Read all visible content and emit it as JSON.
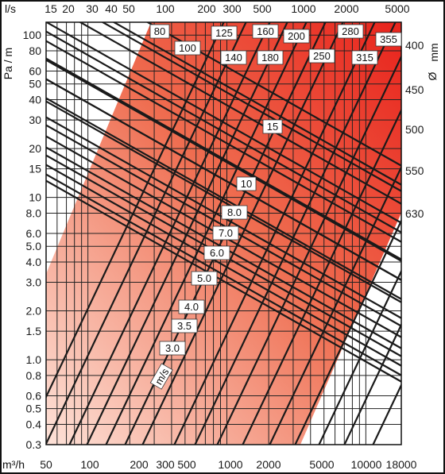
{
  "chart_data": {
    "type": "line",
    "title": "",
    "axes": {
      "bottom": {
        "label": "m³/h",
        "scale": "log",
        "range": [
          50,
          18000
        ],
        "tick_labels": [
          "50",
          "100",
          "200",
          "300",
          "500",
          "1000",
          "2000",
          "5000",
          "10000",
          "18000"
        ],
        "tick_values": [
          50,
          100,
          200,
          300,
          500,
          1000,
          2000,
          5000,
          10000,
          18000
        ]
      },
      "top": {
        "label": "l/s",
        "scale": "log",
        "tick_labels": [
          "15",
          "20",
          "30",
          "40",
          "50",
          "100",
          "200",
          "300",
          "500",
          "1000",
          "2000",
          "5000"
        ],
        "tick_values": [
          15,
          20,
          30,
          40,
          50,
          100,
          200,
          300,
          500,
          1000,
          2000,
          5000
        ]
      },
      "left": {
        "label": "Pa / m",
        "scale": "log",
        "range": [
          0.3,
          120
        ],
        "tick_labels": [
          "100",
          "80",
          "60",
          "50",
          "40",
          "30",
          "20",
          "15",
          "10",
          "8.0",
          "6.0",
          "5.0",
          "4.0",
          "3.0",
          "2.0",
          "1.5",
          "1.0",
          "0.8",
          "0.6",
          "0.5",
          "0.4",
          "0.3"
        ],
        "tick_values": [
          100,
          80,
          60,
          50,
          40,
          30,
          20,
          15,
          10,
          8,
          6,
          5,
          4,
          3,
          2,
          1.5,
          1,
          0.8,
          0.6,
          0.5,
          0.4,
          0.3
        ]
      },
      "right": {
        "label": "Ø",
        "unit": "mm",
        "tick_labels": [
          "400",
          "450",
          "500",
          "550",
          "630"
        ]
      }
    },
    "grid": true,
    "series_groups": [
      {
        "name": "diameter",
        "unit": "mm",
        "labels": [
          "80",
          "100",
          "125",
          "140",
          "160",
          "180",
          "200",
          "250",
          "280",
          "315",
          "355",
          "400",
          "450",
          "500",
          "550",
          "630"
        ]
      },
      {
        "name": "velocity",
        "unit": "m/s",
        "labels": [
          "3.0",
          "3.5",
          "4.0",
          "5.0",
          "6.0",
          "7.0",
          "8.0",
          "10",
          "15"
        ]
      }
    ],
    "velocity_axis_label": "m/s"
  },
  "colors": {
    "gradient_light": "#fde2d8",
    "gradient_dark": "#e8231c",
    "lines": "#1a1a1a",
    "grid": "#222222"
  }
}
